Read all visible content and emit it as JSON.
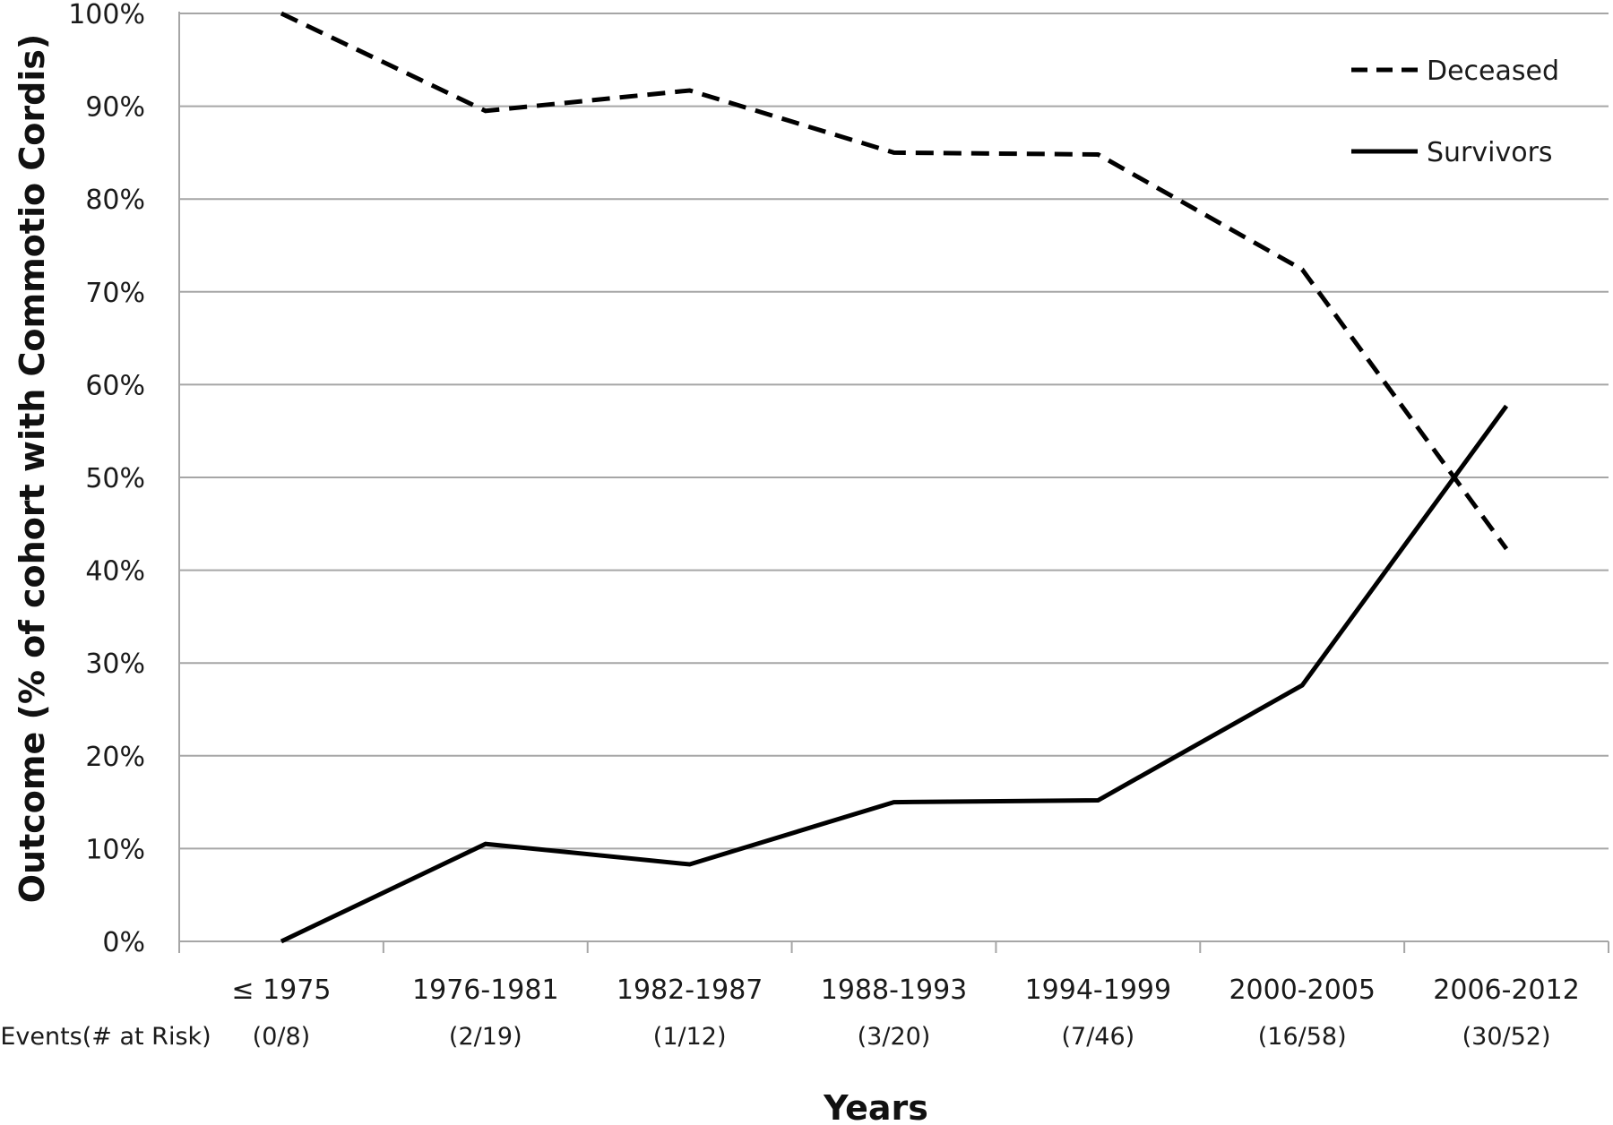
{
  "chart_data": {
    "type": "line",
    "categories": [
      "≤ 1975",
      "1976-1981",
      "1982-1987",
      "1988-1993",
      "1994-1999",
      "2000-2005",
      "2006-2012"
    ],
    "events_at_risk_label": "Events(# at Risk)",
    "events_at_risk": [
      "(0/8)",
      "(2/19)",
      "(1/12)",
      "(3/20)",
      "(7/46)",
      "(16/58)",
      "(30/52)"
    ],
    "series": [
      {
        "name": "Deceased",
        "values": [
          100,
          89.5,
          91.7,
          85,
          84.8,
          72.4,
          42.3
        ],
        "line_style": "dashed",
        "color": "#000000"
      },
      {
        "name": "Survivors",
        "values": [
          0,
          10.5,
          8.3,
          15,
          15.2,
          27.6,
          57.7
        ],
        "line_style": "solid",
        "color": "#000000"
      }
    ],
    "xlabel": "Years",
    "ylabel": "Outcome (% of cohort with Commotio Cordis)",
    "ylim": [
      0,
      100
    ],
    "yticks": [
      "0%",
      "10%",
      "20%",
      "30%",
      "40%",
      "50%",
      "60%",
      "70%",
      "80%",
      "90%",
      "100%"
    ],
    "grid": "horizontal",
    "legend_position": "top-right",
    "gridline_color": "#a6a6a6"
  }
}
